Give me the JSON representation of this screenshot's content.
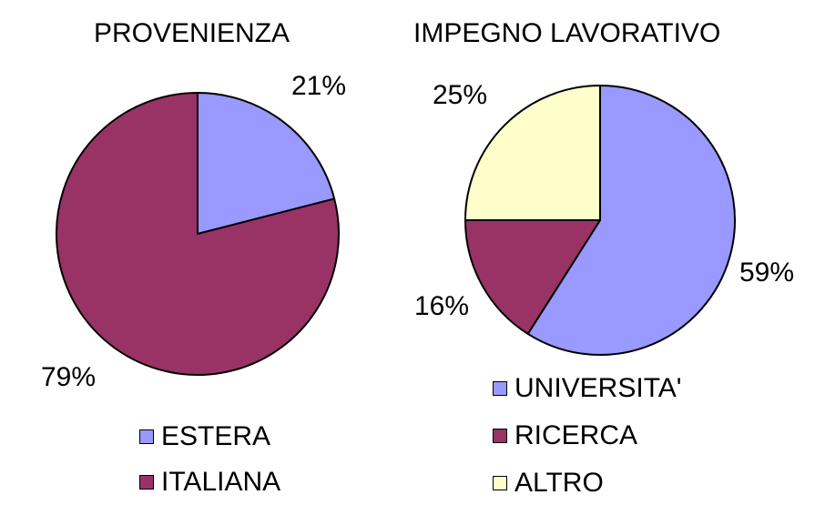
{
  "colors": {
    "periwinkle": "#9999ff",
    "plum": "#993366",
    "cream": "#ffffcc"
  },
  "chart_data": [
    {
      "type": "pie",
      "title": "PROVENIENZA",
      "slices": [
        {
          "name": "ESTERA",
          "value": 21,
          "label": "21%",
          "color": "#9999ff"
        },
        {
          "name": "ITALIANA",
          "value": 79,
          "label": "79%",
          "color": "#993366"
        }
      ],
      "legend_position": "bottom"
    },
    {
      "type": "pie",
      "title": "IMPEGNO LAVORATIVO",
      "slices": [
        {
          "name": "UNIVERSITA'",
          "value": 59,
          "label": "59%",
          "color": "#9999ff"
        },
        {
          "name": "RICERCA",
          "value": 16,
          "label": "16%",
          "color": "#993366"
        },
        {
          "name": "ALTRO",
          "value": 25,
          "label": "25%",
          "color": "#ffffcc"
        }
      ],
      "legend_position": "bottom"
    }
  ]
}
